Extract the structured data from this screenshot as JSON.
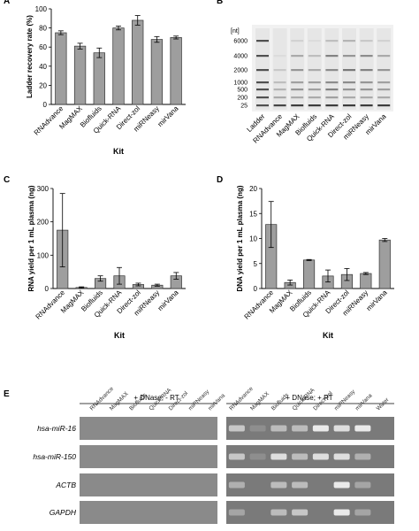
{
  "panel_labels": [
    "A",
    "B",
    "C",
    "D",
    "E"
  ],
  "kits": [
    "RNAdvance",
    "MagMAX",
    "Biofluids",
    "Quick-RNA",
    "Direct-zol",
    "miRNeasy",
    "mirVana"
  ],
  "chart_data": [
    {
      "panel": "A",
      "type": "bar",
      "ylabel": "Ladder recovery rate (%)",
      "xlabel": "Kit",
      "ylim": [
        0,
        100
      ],
      "yticks": [
        0,
        20,
        40,
        60,
        80,
        100
      ],
      "categories": [
        "RNAdvance",
        "MagMAX",
        "Biofluids",
        "Quick-RNA",
        "Direct-zol",
        "miRNeasy",
        "mirVana"
      ],
      "values": [
        75,
        61,
        54,
        80,
        88,
        68,
        70
      ],
      "errors": [
        2,
        3,
        5,
        2,
        5,
        3,
        1.5
      ],
      "bar_color": "#9e9e9e"
    },
    {
      "panel": "C",
      "type": "bar",
      "ylabel": "RNA yield per 1 mL plasma (ng)",
      "xlabel": "Kit",
      "ylim": [
        0,
        300
      ],
      "yticks": [
        0,
        100,
        200,
        300
      ],
      "categories": [
        "RNAdvance",
        "MagMAX",
        "Biofluids",
        "Quick-RNA",
        "Direct-zol",
        "miRNeasy",
        "mirVana"
      ],
      "values": [
        175,
        3,
        30,
        38,
        12,
        10,
        38
      ],
      "errors": [
        110,
        2,
        8,
        25,
        4,
        3,
        10
      ],
      "bar_color": "#9e9e9e"
    },
    {
      "panel": "D",
      "type": "bar",
      "ylabel": "DNA yield per 1 mL plasma (ng)",
      "xlabel": "Kit",
      "ylim": [
        0,
        20
      ],
      "yticks": [
        0,
        5,
        10,
        15,
        20
      ],
      "categories": [
        "RNAdvance",
        "MagMAX",
        "Biofluids",
        "Quick-RNA",
        "Direct-zol",
        "miRNeasy",
        "mirVana"
      ],
      "values": [
        12.8,
        1.2,
        5.7,
        2.5,
        2.8,
        3.0,
        9.7
      ],
      "errors": [
        4.6,
        0.5,
        0.1,
        1.2,
        1.2,
        0.2,
        0.3
      ],
      "bar_color": "#9e9e9e"
    }
  ],
  "panel_b": {
    "unit_label": "[nt]",
    "ladder_sizes": [
      "6000",
      "4000",
      "2000",
      "1000",
      "500",
      "200",
      "25"
    ],
    "lane_labels": [
      "Ladder",
      "RNAdvance",
      "MagMAX",
      "Biofluids",
      "Quick-RNA",
      "Direct-zol",
      "miRNeasy",
      "mirVana"
    ]
  },
  "panel_e": {
    "condition_left": "+ DNase; - RT",
    "condition_right": "+ DNase; + RT",
    "lanes_left": [
      "RNAdvance",
      "MagMAX",
      "Biofluids",
      "Quick-RNA",
      "Direct-zol",
      "miRNeasy",
      "mirVana"
    ],
    "lanes_right": [
      "RNAdvance",
      "MagMAX",
      "Biofluids",
      "Quick-RNA",
      "Direct-zol",
      "miRNeasy",
      "mirVana",
      "Water"
    ],
    "genes": [
      "hsa-miR-16",
      "hsa-miR-150",
      "ACTB",
      "GAPDH"
    ],
    "band_intensity": [
      [
        0.6,
        0.1,
        0.5,
        0.5,
        0.9,
        0.8,
        0.9,
        0
      ],
      [
        0.6,
        0.1,
        0.8,
        0.5,
        0.8,
        0.8,
        0.4,
        0
      ],
      [
        0.4,
        0.0,
        0.5,
        0.5,
        0.0,
        0.9,
        0.3,
        0
      ],
      [
        0.3,
        0.0,
        0.5,
        0.6,
        0.0,
        0.9,
        0.3,
        0
      ]
    ]
  }
}
